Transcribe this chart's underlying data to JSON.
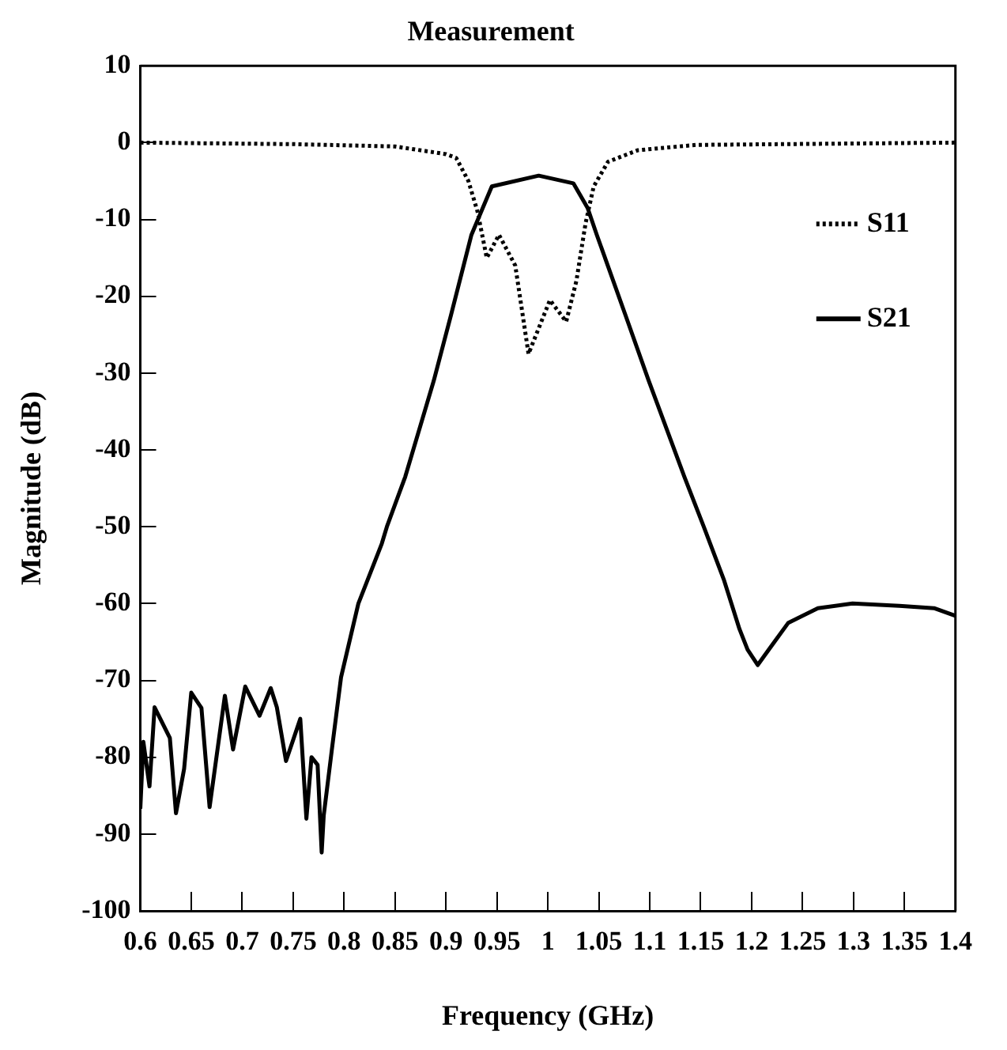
{
  "chart_data": {
    "type": "line",
    "title": "Measurement",
    "xlabel": "Frequency (GHz)",
    "ylabel": "Magnitude (dB)",
    "xlim": [
      0.6,
      1.4
    ],
    "xticks": [
      0.6,
      0.65,
      0.7,
      0.75,
      0.8,
      0.85,
      0.9,
      0.95,
      1,
      1.05,
      1.1,
      1.15,
      1.2,
      1.25,
      1.3,
      1.35,
      1.4
    ],
    "ylim": [
      -100,
      10
    ],
    "yticks": [
      -100,
      -90,
      -80,
      -70,
      -60,
      -50,
      -40,
      -30,
      -20,
      -10,
      0,
      10
    ],
    "grid": false,
    "legend": "top right",
    "marker": "none",
    "series": [
      {
        "name": "S11",
        "color": "#000000",
        "line_style": "dotted",
        "x": [
          0.6,
          0.75,
          0.85,
          0.9,
          0.91,
          0.922,
          0.931,
          0.94,
          0.952,
          0.968,
          0.981,
          1.002,
          1.018,
          1.028,
          1.037,
          1.045,
          1.059,
          1.088,
          1.145,
          1.4
        ],
        "values": [
          0,
          -0.2,
          -0.5,
          -1.5,
          -2,
          -5,
          -9,
          -15,
          -12,
          -16,
          -27.5,
          -20.5,
          -23.3,
          -18,
          -10.5,
          -5.7,
          -2.5,
          -1,
          -0.3,
          0
        ]
      },
      {
        "name": "S21",
        "color": "#000000",
        "line_style": "solid",
        "x": [
          0.6,
          0.603,
          0.609,
          0.614,
          0.629,
          0.635,
          0.643,
          0.65,
          0.66,
          0.668,
          0.683,
          0.691,
          0.703,
          0.717,
          0.728,
          0.734,
          0.743,
          0.757,
          0.763,
          0.768,
          0.774,
          0.778,
          0.78,
          0.788,
          0.797,
          0.814,
          0.837,
          0.842,
          0.86,
          0.888,
          0.905,
          0.925,
          0.945,
          0.991,
          1.025,
          1.039,
          1.048,
          1.076,
          1.099,
          1.134,
          1.153,
          1.173,
          1.188,
          1.196,
          1.206,
          1.219,
          1.236,
          1.265,
          1.299,
          1.345,
          1.379,
          1.4
        ],
        "values": [
          -86.7,
          -78,
          -83.8,
          -73.5,
          -77.5,
          -87.3,
          -81.5,
          -71.6,
          -73.6,
          -86.5,
          -72,
          -79,
          -70.8,
          -74.6,
          -71,
          -73.5,
          -80.5,
          -75,
          -88,
          -80,
          -81,
          -92.4,
          -87.6,
          -79,
          -69.6,
          -60,
          -52.2,
          -50,
          -43.5,
          -31,
          -22.4,
          -12,
          -5.7,
          -4.3,
          -5.3,
          -8.5,
          -12,
          -22.4,
          -31,
          -43.5,
          -50,
          -57,
          -63.3,
          -66,
          -68,
          -65.6,
          -62.5,
          -60.6,
          -60,
          -60.3,
          -60.6,
          -61.6
        ]
      }
    ]
  }
}
